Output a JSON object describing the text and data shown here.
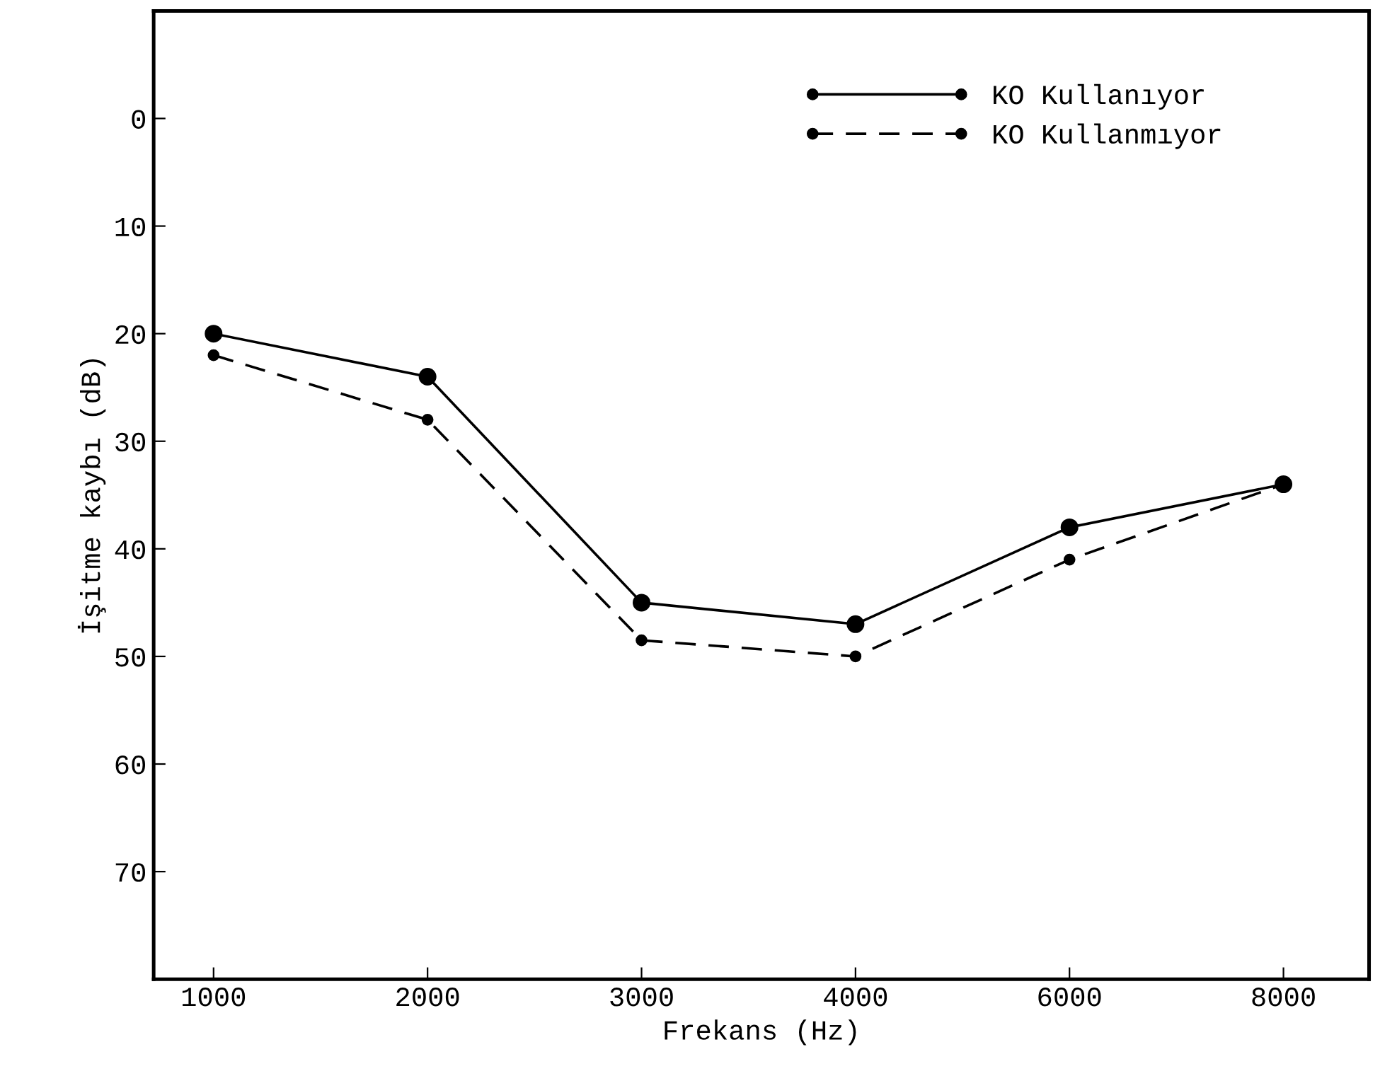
{
  "chart_data": {
    "type": "line",
    "xlabel": "Frekans (Hz)",
    "ylabel": "İşitme kaybı (dB)",
    "categories": [
      "1000",
      "2000",
      "3000",
      "4000",
      "6000",
      "8000"
    ],
    "series": [
      {
        "name": "KO Kullanıyor",
        "color": "#000000",
        "line_style": "solid",
        "values": [
          20,
          24,
          45,
          47,
          38,
          34
        ]
      },
      {
        "name": "KO Kullanmıyor",
        "color": "#000000",
        "line_style": "dashed",
        "values": [
          22,
          28,
          48.5,
          50,
          41,
          34
        ]
      }
    ],
    "ylim": [
      80,
      -10
    ],
    "yticks": [
      0,
      10,
      20,
      30,
      40,
      50,
      60,
      70
    ],
    "marker": "circle",
    "grid": false,
    "legend": "top right"
  }
}
